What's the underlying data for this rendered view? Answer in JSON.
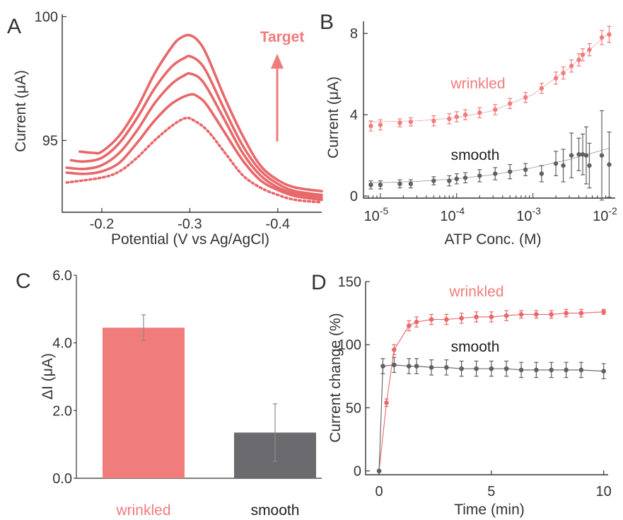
{
  "colors": {
    "wrinkled": "#f07c7c",
    "wrinkled_dark": "#e8686a",
    "smooth": "#606064",
    "smooth_bar": "#6b6b6f",
    "axis": "#333333",
    "text": "#333333"
  },
  "chart_data": [
    {
      "panel": "A",
      "type": "line",
      "title": "",
      "xlabel": "Potential (V vs Ag/AgCl)",
      "ylabel": "Current (μA)",
      "xlim": [
        -0.155,
        -0.45
      ],
      "ylim": [
        92.1,
        100.1
      ],
      "xticks": [
        -0.2,
        -0.3,
        -0.4
      ],
      "xtick_labels": [
        "-0.2",
        "-0.3",
        "-0.4"
      ],
      "yticks": [
        95,
        100
      ],
      "ytick_labels": [
        "95",
        "100"
      ],
      "annotation": "Target",
      "series": [
        {
          "style": "dotted",
          "points": [
            [
              -0.16,
              93.3
            ],
            [
              -0.2,
              93.5
            ],
            [
              -0.22,
              93.75
            ],
            [
              -0.24,
              94.3
            ],
            [
              -0.26,
              95.0
            ],
            [
              -0.28,
              95.6
            ],
            [
              -0.295,
              95.9
            ],
            [
              -0.305,
              95.8
            ],
            [
              -0.32,
              95.4
            ],
            [
              -0.34,
              94.5
            ],
            [
              -0.36,
              93.6
            ],
            [
              -0.38,
              93.1
            ],
            [
              -0.4,
              92.8
            ],
            [
              -0.42,
              92.6
            ],
            [
              -0.45,
              92.5
            ]
          ]
        },
        {
          "style": "solid",
          "points": [
            [
              -0.16,
              93.7
            ],
            [
              -0.18,
              93.65
            ],
            [
              -0.2,
              93.75
            ],
            [
              -0.22,
              94.1
            ],
            [
              -0.24,
              94.9
            ],
            [
              -0.26,
              95.8
            ],
            [
              -0.28,
              96.5
            ],
            [
              -0.3,
              96.85
            ],
            [
              -0.31,
              96.75
            ],
            [
              -0.32,
              96.4
            ],
            [
              -0.34,
              95.3
            ],
            [
              -0.36,
              94.2
            ],
            [
              -0.38,
              93.4
            ],
            [
              -0.4,
              93.0
            ],
            [
              -0.42,
              92.75
            ],
            [
              -0.45,
              92.6
            ]
          ]
        },
        {
          "style": "solid",
          "points": [
            [
              -0.16,
              93.9
            ],
            [
              -0.18,
              93.85
            ],
            [
              -0.2,
              94.0
            ],
            [
              -0.22,
              94.5
            ],
            [
              -0.24,
              95.4
            ],
            [
              -0.26,
              96.5
            ],
            [
              -0.28,
              97.3
            ],
            [
              -0.295,
              97.65
            ],
            [
              -0.3,
              97.7
            ],
            [
              -0.31,
              97.55
            ],
            [
              -0.32,
              97.1
            ],
            [
              -0.34,
              95.8
            ],
            [
              -0.36,
              94.5
            ],
            [
              -0.38,
              93.6
            ],
            [
              -0.4,
              93.1
            ],
            [
              -0.42,
              92.85
            ],
            [
              -0.45,
              92.7
            ]
          ]
        },
        {
          "style": "solid",
          "points": [
            [
              -0.165,
              94.2
            ],
            [
              -0.18,
              94.15
            ],
            [
              -0.2,
              94.3
            ],
            [
              -0.22,
              94.9
            ],
            [
              -0.24,
              95.9
            ],
            [
              -0.26,
              97.1
            ],
            [
              -0.28,
              98.0
            ],
            [
              -0.295,
              98.35
            ],
            [
              -0.3,
              98.4
            ],
            [
              -0.31,
              98.2
            ],
            [
              -0.32,
              97.7
            ],
            [
              -0.34,
              96.2
            ],
            [
              -0.36,
              94.8
            ],
            [
              -0.38,
              93.8
            ],
            [
              -0.4,
              93.25
            ],
            [
              -0.42,
              92.95
            ],
            [
              -0.45,
              92.8
            ]
          ]
        },
        {
          "style": "solid",
          "points": [
            [
              -0.175,
              94.55
            ],
            [
              -0.19,
              94.5
            ],
            [
              -0.2,
              94.55
            ],
            [
              -0.22,
              95.2
            ],
            [
              -0.24,
              96.3
            ],
            [
              -0.26,
              97.7
            ],
            [
              -0.28,
              98.8
            ],
            [
              -0.29,
              99.15
            ],
            [
              -0.3,
              99.25
            ],
            [
              -0.31,
              99.0
            ],
            [
              -0.32,
              98.4
            ],
            [
              -0.34,
              96.7
            ],
            [
              -0.36,
              95.2
            ],
            [
              -0.38,
              94.0
            ],
            [
              -0.4,
              93.4
            ],
            [
              -0.42,
              93.1
            ],
            [
              -0.45,
              92.95
            ]
          ]
        }
      ]
    },
    {
      "panel": "B",
      "type": "scatter",
      "title": "",
      "xlabel": "ATP Conc. (M)",
      "ylabel": "Current (μA)",
      "xscale": "log",
      "xlim": [
        6e-06,
        0.012
      ],
      "ylim": [
        -0.1,
        8.6
      ],
      "xticks": [
        1e-05,
        0.0001,
        0.001,
        0.01
      ],
      "xtick_labels": [
        [
          "10",
          "-5"
        ],
        [
          "10",
          "-4"
        ],
        [
          "10",
          "-3"
        ],
        [
          "10",
          "-2"
        ]
      ],
      "yticks": [
        0,
        4,
        8
      ],
      "ytick_labels": [
        "0",
        "4",
        "8"
      ],
      "series": [
        {
          "name": "wrinkled",
          "points": [
            [
              7.5e-06,
              3.45,
              0.25
            ],
            [
              1e-05,
              3.5,
              0.25
            ],
            [
              1.8e-05,
              3.6,
              0.2
            ],
            [
              2.5e-05,
              3.65,
              0.2
            ],
            [
              5e-05,
              3.7,
              0.25
            ],
            [
              8e-05,
              3.8,
              0.25
            ],
            [
              0.0001,
              3.9,
              0.25
            ],
            [
              0.00013,
              4.0,
              0.25
            ],
            [
              0.0002,
              4.1,
              0.25
            ],
            [
              0.00032,
              4.25,
              0.25
            ],
            [
              0.0005,
              4.55,
              0.25
            ],
            [
              0.0008,
              4.85,
              0.25
            ],
            [
              0.0013,
              5.3,
              0.25
            ],
            [
              0.002,
              5.8,
              0.3
            ],
            [
              0.0025,
              6.05,
              0.3
            ],
            [
              0.0032,
              6.4,
              0.3
            ],
            [
              0.004,
              6.7,
              0.3
            ],
            [
              0.0045,
              6.95,
              0.3
            ],
            [
              0.0055,
              7.2,
              0.3
            ],
            [
              0.008,
              7.8,
              0.35
            ],
            [
              0.01,
              7.95,
              0.4
            ]
          ]
        },
        {
          "name": "smooth",
          "points": [
            [
              7.5e-06,
              0.55,
              0.2
            ],
            [
              1e-05,
              0.55,
              0.2
            ],
            [
              1.8e-05,
              0.6,
              0.2
            ],
            [
              2.5e-05,
              0.6,
              0.2
            ],
            [
              5e-05,
              0.75,
              0.2
            ],
            [
              8e-05,
              0.75,
              0.25
            ],
            [
              0.0001,
              0.85,
              0.25
            ],
            [
              0.00013,
              0.9,
              0.25
            ],
            [
              0.0002,
              1.0,
              0.3
            ],
            [
              0.00032,
              1.1,
              0.3
            ],
            [
              0.0005,
              1.2,
              0.35
            ],
            [
              0.0008,
              1.3,
              0.3
            ],
            [
              0.0013,
              1.1,
              0.4
            ],
            [
              0.002,
              1.6,
              0.6
            ],
            [
              0.0025,
              1.5,
              0.8
            ],
            [
              0.0032,
              2.0,
              1.1
            ],
            [
              0.004,
              2.05,
              0.8
            ],
            [
              0.0045,
              2.05,
              1.0
            ],
            [
              0.005,
              2.0,
              1.4
            ],
            [
              0.0055,
              1.5,
              1.1
            ],
            [
              0.008,
              2.0,
              2.2
            ],
            [
              0.01,
              1.55,
              1.6
            ]
          ]
        }
      ],
      "fits": [
        {
          "name": "wrinkled",
          "points": [
            [
              7e-06,
              3.65
            ],
            [
              1e-05,
              3.66
            ],
            [
              3e-05,
              3.7
            ],
            [
              0.0001,
              3.85
            ],
            [
              0.0003,
              4.2
            ],
            [
              0.001,
              5.0
            ],
            [
              0.003,
              6.3
            ],
            [
              0.01,
              8.05
            ]
          ]
        },
        {
          "name": "smooth",
          "points": [
            [
              7e-06,
              0.65
            ],
            [
              1e-05,
              0.66
            ],
            [
              3e-05,
              0.72
            ],
            [
              0.0001,
              0.85
            ],
            [
              0.0003,
              1.05
            ],
            [
              0.001,
              1.4
            ],
            [
              0.003,
              1.8
            ],
            [
              0.01,
              2.35
            ]
          ]
        }
      ],
      "labels": [
        "wrinkled",
        "smooth"
      ]
    },
    {
      "panel": "C",
      "type": "bar",
      "title": "",
      "xlabel": "",
      "ylabel": "ΔI (μA)",
      "categories": [
        "wrinkled",
        "smooth"
      ],
      "values": [
        4.45,
        1.35
      ],
      "errors": [
        0.38,
        0.85
      ],
      "ylim": [
        0,
        6.0
      ],
      "yticks": [
        0,
        2,
        4,
        6
      ],
      "ytick_labels": [
        "0.0",
        "2.0",
        "4.0",
        "6.0"
      ]
    },
    {
      "panel": "D",
      "type": "line",
      "title": "",
      "xlabel": "Time (min)",
      "ylabel": "Current change (%)",
      "xlim": [
        -0.6,
        10.2
      ],
      "ylim": [
        -3,
        150
      ],
      "xticks": [
        0,
        5,
        10
      ],
      "xtick_labels": [
        "0",
        "5",
        "10"
      ],
      "yticks": [
        0,
        50,
        100,
        150
      ],
      "ytick_labels": [
        "0",
        "50",
        "100",
        "150"
      ],
      "series": [
        {
          "name": "wrinkled",
          "points": [
            [
              0,
              0,
              0
            ],
            [
              0.33,
              54,
              3
            ],
            [
              0.67,
              96,
              4
            ],
            [
              1.33,
              115,
              4
            ],
            [
              1.67,
              118,
              4
            ],
            [
              2.33,
              120,
              4
            ],
            [
              3,
              120,
              4
            ],
            [
              3.67,
              121,
              4
            ],
            [
              4.33,
              122,
              4
            ],
            [
              5,
              122,
              4
            ],
            [
              5.67,
              123,
              4
            ],
            [
              6.33,
              124,
              3
            ],
            [
              7,
              124,
              3
            ],
            [
              7.67,
              124,
              3
            ],
            [
              8.33,
              125,
              3
            ],
            [
              9,
              125,
              3
            ],
            [
              10,
              126,
              2
            ]
          ]
        },
        {
          "name": "smooth",
          "points": [
            [
              0,
              0,
              0
            ],
            [
              0.17,
              83,
              6
            ],
            [
              0.67,
              84,
              6
            ],
            [
              1.33,
              83,
              6
            ],
            [
              1.67,
              83,
              6
            ],
            [
              2.33,
              82,
              6
            ],
            [
              3,
              82,
              6
            ],
            [
              3.67,
              81,
              6
            ],
            [
              4.33,
              81,
              6
            ],
            [
              5,
              81,
              6
            ],
            [
              5.67,
              81,
              6
            ],
            [
              6.33,
              80,
              6
            ],
            [
              7,
              80,
              6
            ],
            [
              7.67,
              80,
              6
            ],
            [
              8.33,
              80,
              6
            ],
            [
              9,
              80,
              6
            ],
            [
              10,
              79,
              6
            ]
          ]
        }
      ],
      "labels": [
        "wrinkled",
        "smooth"
      ]
    }
  ]
}
